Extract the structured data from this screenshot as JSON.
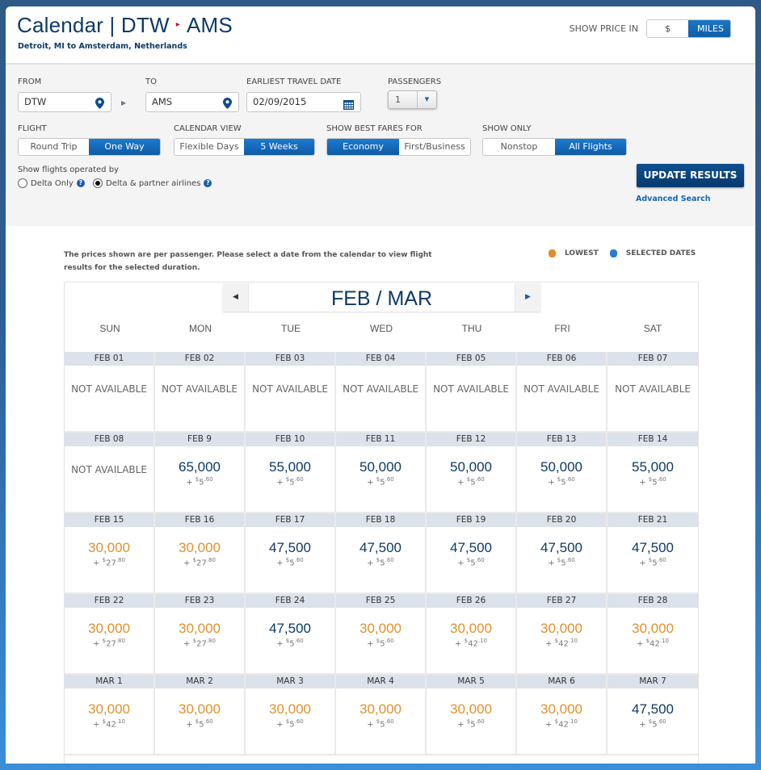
{
  "header": {
    "title_prefix": "Calendar | DTW",
    "route_arrow": "▸",
    "title_dest": "AMS",
    "subtitle": "Detroit, MI to Amsterdam, Netherlands",
    "show_price_label": "SHOW PRICE IN",
    "price_options": [
      "$ USD",
      "MILES"
    ],
    "price_selected": "MILES"
  },
  "form": {
    "from_label": "FROM",
    "from_value": "DTW",
    "to_label": "TO",
    "to_value": "AMS",
    "date_label": "EARLIEST TRAVEL DATE",
    "date_value": "02/09/2015",
    "passengers_label": "PASSENGERS",
    "passengers_value": "1",
    "flight_label": "FLIGHT",
    "flight_options": [
      "Round Trip",
      "One Way"
    ],
    "calendar_view_label": "CALENDAR VIEW",
    "calendar_view_options": [
      "Flexible Days",
      "5 Weeks"
    ],
    "best_fares_label": "SHOW BEST FARES FOR",
    "best_fares_options": [
      "Economy",
      "First/Business"
    ],
    "show_only_label": "SHOW ONLY",
    "show_only_options": [
      "Nonstop",
      "All Flights"
    ],
    "operated_label": "Show flights operated by",
    "operated_options": [
      "Delta Only",
      "Delta & partner airlines"
    ],
    "update_button": "UPDATE RESULTS",
    "advanced_search": "Advanced Search"
  },
  "calendar": {
    "note": "The prices shown are per passenger. Please select a date from the calendar to view flight results for the selected duration.",
    "legend": [
      {
        "label": "LOWEST",
        "color": "#e8892a"
      },
      {
        "label": "SELECTED DATES",
        "color": "#2a7ad8"
      }
    ],
    "month_label": "FEB / MAR",
    "weekdays": [
      "SUN",
      "MON",
      "TUE",
      "WED",
      "THU",
      "FRI",
      "SAT"
    ],
    "na_text": "NOT AVAILABLE",
    "colors": {
      "lowest": "#e0922f",
      "regular": "#0e3a63"
    },
    "weeks": [
      [
        {
          "date": "FEB 01",
          "na": true
        },
        {
          "date": "FEB 02",
          "na": true
        },
        {
          "date": "FEB 03",
          "na": true
        },
        {
          "date": "FEB 04",
          "na": true
        },
        {
          "date": "FEB 05",
          "na": true
        },
        {
          "date": "FEB 06",
          "na": true
        },
        {
          "date": "FEB 07",
          "na": true
        }
      ],
      [
        {
          "date": "FEB 08",
          "na": true
        },
        {
          "date": "FEB 9",
          "miles": "65,000",
          "tax_d": "5",
          "tax_c": ".60",
          "lowest": false
        },
        {
          "date": "FEB 10",
          "miles": "55,000",
          "tax_d": "5",
          "tax_c": ".60",
          "lowest": false
        },
        {
          "date": "FEB 11",
          "miles": "50,000",
          "tax_d": "5",
          "tax_c": ".60",
          "lowest": false
        },
        {
          "date": "FEB 12",
          "miles": "50,000",
          "tax_d": "5",
          "tax_c": ".60",
          "lowest": false
        },
        {
          "date": "FEB 13",
          "miles": "50,000",
          "tax_d": "5",
          "tax_c": ".60",
          "lowest": false
        },
        {
          "date": "FEB 14",
          "miles": "55,000",
          "tax_d": "5",
          "tax_c": ".60",
          "lowest": false
        }
      ],
      [
        {
          "date": "FEB 15",
          "miles": "30,000",
          "tax_d": "27",
          "tax_c": ".80",
          "lowest": true
        },
        {
          "date": "FEB 16",
          "miles": "30,000",
          "tax_d": "27",
          "tax_c": ".80",
          "lowest": true
        },
        {
          "date": "FEB 17",
          "miles": "47,500",
          "tax_d": "5",
          "tax_c": ".60",
          "lowest": false
        },
        {
          "date": "FEB 18",
          "miles": "47,500",
          "tax_d": "5",
          "tax_c": ".60",
          "lowest": false
        },
        {
          "date": "FEB 19",
          "miles": "47,500",
          "tax_d": "5",
          "tax_c": ".60",
          "lowest": false
        },
        {
          "date": "FEB 20",
          "miles": "47,500",
          "tax_d": "5",
          "tax_c": ".60",
          "lowest": false
        },
        {
          "date": "FEB 21",
          "miles": "47,500",
          "tax_d": "5",
          "tax_c": ".60",
          "lowest": false
        }
      ],
      [
        {
          "date": "FEB 22",
          "miles": "30,000",
          "tax_d": "27",
          "tax_c": ".80",
          "lowest": true
        },
        {
          "date": "FEB 23",
          "miles": "30,000",
          "tax_d": "27",
          "tax_c": ".80",
          "lowest": true
        },
        {
          "date": "FEB 24",
          "miles": "47,500",
          "tax_d": "5",
          "tax_c": ".60",
          "lowest": false
        },
        {
          "date": "FEB 25",
          "miles": "30,000",
          "tax_d": "5",
          "tax_c": ".60",
          "lowest": true
        },
        {
          "date": "FEB 26",
          "miles": "30,000",
          "tax_d": "42",
          "tax_c": ".10",
          "lowest": true
        },
        {
          "date": "FEB 27",
          "miles": "30,000",
          "tax_d": "42",
          "tax_c": ".10",
          "lowest": true
        },
        {
          "date": "FEB 28",
          "miles": "30,000",
          "tax_d": "42",
          "tax_c": ".10",
          "lowest": true
        }
      ],
      [
        {
          "date": "MAR 1",
          "miles": "30,000",
          "tax_d": "42",
          "tax_c": ".10",
          "lowest": true
        },
        {
          "date": "MAR 2",
          "miles": "30,000",
          "tax_d": "5",
          "tax_c": ".60",
          "lowest": true
        },
        {
          "date": "MAR 3",
          "miles": "30,000",
          "tax_d": "5",
          "tax_c": ".60",
          "lowest": true
        },
        {
          "date": "MAR 4",
          "miles": "30,000",
          "tax_d": "5",
          "tax_c": ".60",
          "lowest": true
        },
        {
          "date": "MAR 5",
          "miles": "30,000",
          "tax_d": "5",
          "tax_c": ".60",
          "lowest": true
        },
        {
          "date": "MAR 6",
          "miles": "30,000",
          "tax_d": "42",
          "tax_c": ".10",
          "lowest": true
        },
        {
          "date": "MAR 7",
          "miles": "47,500",
          "tax_d": "5",
          "tax_c": ".60",
          "lowest": false
        }
      ]
    ]
  }
}
